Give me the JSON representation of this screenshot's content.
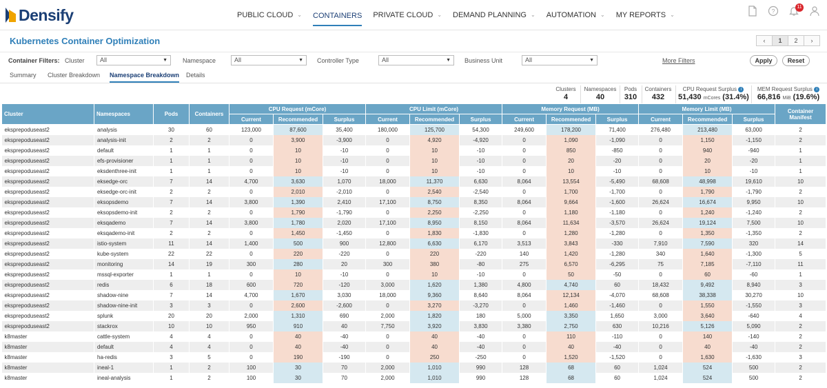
{
  "brand": "Densify",
  "nav": {
    "items": [
      {
        "label": "PUBLIC CLOUD",
        "chevron": true
      },
      {
        "label": "CONTAINERS",
        "chevron": false,
        "active": true
      },
      {
        "label": "PRIVATE CLOUD",
        "chevron": true
      },
      {
        "label": "DEMAND PLANNING",
        "chevron": true
      },
      {
        "label": "AUTOMATION",
        "chevron": true
      },
      {
        "label": "MY REPORTS",
        "chevron": true
      }
    ],
    "notifications": "11"
  },
  "page": {
    "title": "Kubernetes Container Optimization",
    "pager": {
      "prev": "‹",
      "pages": [
        "1",
        "2"
      ],
      "next": "›"
    }
  },
  "filters": {
    "heading": "Container Filters:",
    "cluster_label": "Cluster",
    "cluster_value": "All",
    "namespace_label": "Namespace",
    "namespace_value": "All",
    "controller_label": "Controller Type",
    "controller_value": "All",
    "bu_label": "Business Unit",
    "bu_value": "All",
    "more": "More Filters",
    "apply": "Apply",
    "reset": "Reset"
  },
  "tabs": [
    "Summary",
    "Cluster Breakdown",
    "Namespace Breakdown",
    "Details"
  ],
  "summary": {
    "clusters_label": "Clusters",
    "clusters": "4",
    "namespaces_label": "Namespaces",
    "namespaces": "40",
    "pods_label": "Pods",
    "pods": "310",
    "containers_label": "Containers",
    "containers": "432",
    "cpu_label": "CPU Request Surplus",
    "cpu_value": "51,430",
    "cpu_unit": "mCores",
    "cpu_pct": "(31.4%)",
    "mem_label": "MEM Request Surplus",
    "mem_value": "66,816",
    "mem_unit": "MiB",
    "mem_pct": "(19.6%)"
  },
  "table": {
    "headers": {
      "cluster": "Cluster",
      "namespaces": "Namespaces",
      "pods": "Pods",
      "containers": "Containers",
      "cpu_request": "CPU Request (mCore)",
      "cpu_limit": "CPU Limit (mCore)",
      "mem_request": "Memory Request (MB)",
      "mem_limit": "Memory Limit (MB)",
      "manifest": "Container Manifest",
      "current": "Current",
      "recommended": "Recommended",
      "surplus": "Surplus"
    },
    "rows": [
      [
        "eksprepoduseast2",
        "analysis",
        "30",
        "60",
        "123,000",
        "87,600",
        "35,400",
        "180,000",
        "125,700",
        "54,300",
        "249,600",
        "178,200",
        "71,400",
        "276,480",
        "213,480",
        "63,000",
        "2"
      ],
      [
        "eksprepoduseast2",
        "analysis-init",
        "2",
        "2",
        "0",
        "3,900",
        "-3,900",
        "0",
        "4,920",
        "-4,920",
        "0",
        "1,090",
        "-1,090",
        "0",
        "1,150",
        "-1,150",
        "2"
      ],
      [
        "eksprepoduseast2",
        "default",
        "1",
        "1",
        "0",
        "10",
        "-10",
        "0",
        "10",
        "-10",
        "0",
        "850",
        "-850",
        "0",
        "940",
        "-940",
        "1"
      ],
      [
        "eksprepoduseast2",
        "efs-provisioner",
        "1",
        "1",
        "0",
        "10",
        "-10",
        "0",
        "10",
        "-10",
        "0",
        "20",
        "-20",
        "0",
        "20",
        "-20",
        "1"
      ],
      [
        "eksprepoduseast2",
        "eksdenthree-init",
        "1",
        "1",
        "0",
        "10",
        "-10",
        "0",
        "10",
        "-10",
        "0",
        "10",
        "-10",
        "0",
        "10",
        "-10",
        "1"
      ],
      [
        "eksprepoduseast2",
        "eksedge-orc",
        "7",
        "14",
        "4,700",
        "3,630",
        "1,070",
        "18,000",
        "11,370",
        "6,630",
        "8,064",
        "13,554",
        "-5,490",
        "68,608",
        "48,998",
        "19,610",
        "10"
      ],
      [
        "eksprepoduseast2",
        "eksedge-orc-init",
        "2",
        "2",
        "0",
        "2,010",
        "-2,010",
        "0",
        "2,540",
        "-2,540",
        "0",
        "1,700",
        "-1,700",
        "0",
        "1,790",
        "-1,790",
        "2"
      ],
      [
        "eksprepoduseast2",
        "eksopsdemo",
        "7",
        "14",
        "3,800",
        "1,390",
        "2,410",
        "17,100",
        "8,750",
        "8,350",
        "8,064",
        "9,664",
        "-1,600",
        "26,624",
        "16,674",
        "9,950",
        "10"
      ],
      [
        "eksprepoduseast2",
        "eksopsdemo-init",
        "2",
        "2",
        "0",
        "1,790",
        "-1,790",
        "0",
        "2,250",
        "-2,250",
        "0",
        "1,180",
        "-1,180",
        "0",
        "1,240",
        "-1,240",
        "2"
      ],
      [
        "eksprepoduseast2",
        "eksqademo",
        "7",
        "14",
        "3,800",
        "1,780",
        "2,020",
        "17,100",
        "8,950",
        "8,150",
        "8,064",
        "11,634",
        "-3,570",
        "26,624",
        "19,124",
        "7,500",
        "10"
      ],
      [
        "eksprepoduseast2",
        "eksqademo-init",
        "2",
        "2",
        "0",
        "1,450",
        "-1,450",
        "0",
        "1,830",
        "-1,830",
        "0",
        "1,280",
        "-1,280",
        "0",
        "1,350",
        "-1,350",
        "2"
      ],
      [
        "eksprepoduseast2",
        "istio-system",
        "11",
        "14",
        "1,400",
        "500",
        "900",
        "12,800",
        "6,630",
        "6,170",
        "3,513",
        "3,843",
        "-330",
        "7,910",
        "7,590",
        "320",
        "14"
      ],
      [
        "eksprepoduseast2",
        "kube-system",
        "22",
        "22",
        "0",
        "220",
        "-220",
        "0",
        "220",
        "-220",
        "140",
        "1,420",
        "-1,280",
        "340",
        "1,640",
        "-1,300",
        "5"
      ],
      [
        "eksprepoduseast2",
        "monitoring",
        "14",
        "19",
        "300",
        "280",
        "20",
        "300",
        "380",
        "-80",
        "275",
        "6,570",
        "-6,295",
        "75",
        "7,185",
        "-7,110",
        "11"
      ],
      [
        "eksprepoduseast2",
        "mssql-exporter",
        "1",
        "1",
        "0",
        "10",
        "-10",
        "0",
        "10",
        "-10",
        "0",
        "50",
        "-50",
        "0",
        "60",
        "-60",
        "1"
      ],
      [
        "eksprepoduseast2",
        "redis",
        "6",
        "18",
        "600",
        "720",
        "-120",
        "3,000",
        "1,620",
        "1,380",
        "4,800",
        "4,740",
        "60",
        "18,432",
        "9,492",
        "8,940",
        "3"
      ],
      [
        "eksprepoduseast2",
        "shadow-nine",
        "7",
        "14",
        "4,700",
        "1,670",
        "3,030",
        "18,000",
        "9,360",
        "8,640",
        "8,064",
        "12,134",
        "-4,070",
        "68,608",
        "38,338",
        "30,270",
        "10"
      ],
      [
        "eksprepoduseast2",
        "shadow-nine-init",
        "3",
        "3",
        "0",
        "2,600",
        "-2,600",
        "0",
        "3,270",
        "-3,270",
        "0",
        "1,460",
        "-1,460",
        "0",
        "1,550",
        "-1,550",
        "3"
      ],
      [
        "eksprepoduseast2",
        "splunk",
        "20",
        "20",
        "2,000",
        "1,310",
        "690",
        "2,000",
        "1,820",
        "180",
        "5,000",
        "3,350",
        "1,650",
        "3,000",
        "3,640",
        "-640",
        "4"
      ],
      [
        "eksprepoduseast2",
        "stackrox",
        "10",
        "10",
        "950",
        "910",
        "40",
        "7,750",
        "3,920",
        "3,830",
        "3,380",
        "2,750",
        "630",
        "10,216",
        "5,126",
        "5,090",
        "2"
      ],
      [
        "k8master",
        "cattle-system",
        "4",
        "4",
        "0",
        "40",
        "-40",
        "0",
        "40",
        "-40",
        "0",
        "110",
        "-110",
        "0",
        "140",
        "-140",
        "2"
      ],
      [
        "k8master",
        "default",
        "4",
        "4",
        "0",
        "40",
        "-40",
        "0",
        "40",
        "-40",
        "0",
        "40",
        "-40",
        "0",
        "40",
        "-40",
        "2"
      ],
      [
        "k8master",
        "ha-redis",
        "3",
        "5",
        "0",
        "190",
        "-190",
        "0",
        "250",
        "-250",
        "0",
        "1,520",
        "-1,520",
        "0",
        "1,630",
        "-1,630",
        "3"
      ],
      [
        "k8master",
        "ineal-1",
        "1",
        "2",
        "100",
        "30",
        "70",
        "2,000",
        "1,010",
        "990",
        "128",
        "68",
        "60",
        "1,024",
        "524",
        "500",
        "2"
      ],
      [
        "k8master",
        "ineal-analysis",
        "1",
        "2",
        "100",
        "30",
        "70",
        "2,000",
        "1,010",
        "990",
        "128",
        "68",
        "60",
        "1,024",
        "524",
        "500",
        "2"
      ]
    ]
  }
}
